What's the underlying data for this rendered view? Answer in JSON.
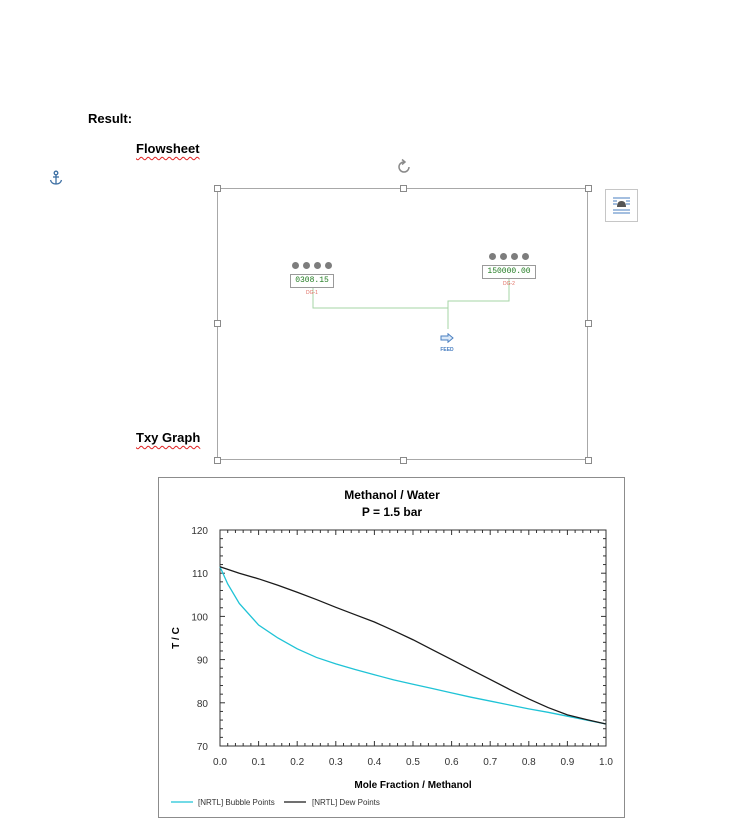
{
  "headings": {
    "result": "Result:",
    "flowsheet": "Flowsheet",
    "txy": "Txy Graph"
  },
  "icons": {
    "anchor": "anchor-icon",
    "rotate": "rotate-icon",
    "layout_options": "layout-options-icon",
    "feed_arrow": "arrow-right-icon"
  },
  "flowsheet": {
    "dg1": {
      "value": "0308.15",
      "label": "DG-1"
    },
    "dg2": {
      "value": "150000.00",
      "label": "DG-2"
    },
    "feed_label": "FEED",
    "colors": {
      "value_text": "#1f7a1f",
      "tag_label": "#e06b5f",
      "connector": "#a6d4a6",
      "feed": "#4a7fc1"
    }
  },
  "chart_data": {
    "type": "line",
    "title": "Methanol / Water",
    "subtitle": "P = 1.5 bar",
    "xlabel": "Mole Fraction / Methanol",
    "ylabel": "T / C",
    "xlim": [
      0,
      1
    ],
    "ylim": [
      70,
      120
    ],
    "xticks": [
      "0.0",
      "0.1",
      "0.2",
      "0.3",
      "0.4",
      "0.5",
      "0.6",
      "0.7",
      "0.8",
      "0.9",
      "1.0"
    ],
    "yticks": [
      "70",
      "80",
      "90",
      "100",
      "110",
      "120"
    ],
    "legend_position": "bottom",
    "grid": false,
    "series": [
      {
        "name": "[NRTL] Bubble Points",
        "color": "#1fc3d6",
        "x": [
          0,
          0.02,
          0.05,
          0.1,
          0.15,
          0.2,
          0.25,
          0.3,
          0.35,
          0.4,
          0.45,
          0.5,
          0.55,
          0.6,
          0.65,
          0.7,
          0.75,
          0.8,
          0.85,
          0.9,
          0.95,
          1.0
        ],
        "y": [
          111.5,
          107.5,
          103,
          98,
          95,
          92.5,
          90.5,
          89,
          87.7,
          86.5,
          85.3,
          84.3,
          83.3,
          82.3,
          81.3,
          80.4,
          79.5,
          78.6,
          77.8,
          76.9,
          76.0,
          75.1
        ]
      },
      {
        "name": "[NRTL] Dew Points",
        "color": "#1a1a1a",
        "x": [
          0,
          0.05,
          0.1,
          0.15,
          0.2,
          0.25,
          0.3,
          0.35,
          0.4,
          0.45,
          0.5,
          0.55,
          0.6,
          0.65,
          0.7,
          0.75,
          0.8,
          0.85,
          0.9,
          0.95,
          1.0
        ],
        "y": [
          111.5,
          110,
          108.7,
          107.2,
          105.6,
          103.9,
          102.1,
          100.4,
          98.7,
          96.7,
          94.6,
          92.3,
          90.0,
          87.7,
          85.4,
          83.1,
          80.9,
          78.9,
          77.2,
          76.1,
          75.1
        ]
      }
    ]
  }
}
